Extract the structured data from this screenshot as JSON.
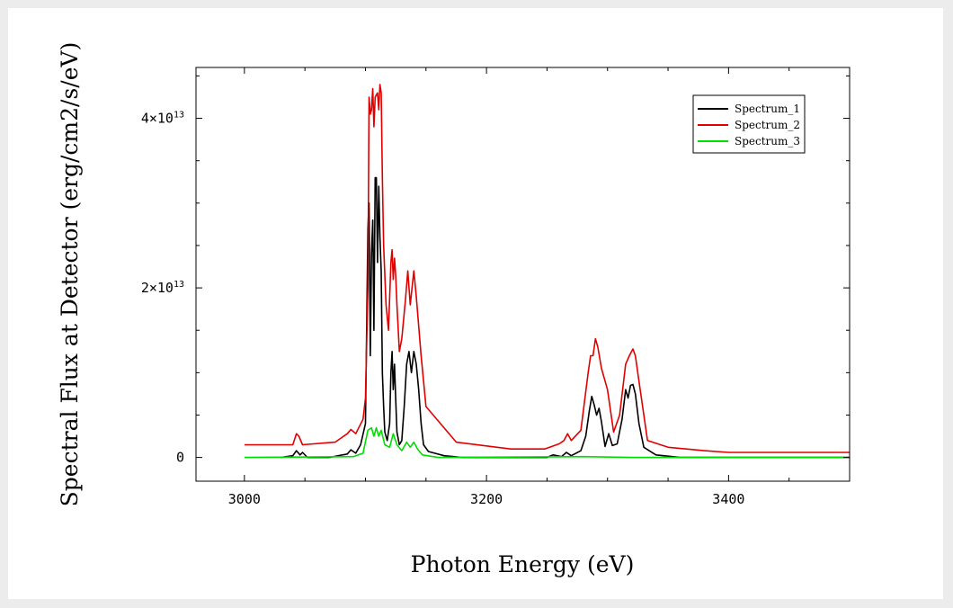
{
  "chart_data": {
    "type": "line",
    "xlabel": "Photon Energy (eV)",
    "ylabel": "Spectral Flux at Detector (erg/cm2/s/eV)",
    "xlim": [
      2960,
      3500
    ],
    "ylim": [
      -2800000000000.0,
      46000000000000.0
    ],
    "x_ticks": [
      {
        "value": 3000,
        "label": "3000"
      },
      {
        "value": 3200,
        "label": "3200"
      },
      {
        "value": 3400,
        "label": "3400"
      }
    ],
    "y_ticks": [
      {
        "value": 0,
        "mantissa": "0",
        "exponent": ""
      },
      {
        "value": 20000000000000.0,
        "mantissa": "2×10",
        "exponent": "13"
      },
      {
        "value": 40000000000000.0,
        "mantissa": "4×10",
        "exponent": "13"
      }
    ],
    "legend": "top-right",
    "series": [
      {
        "name": "Spectrum_1",
        "color": "#000000",
        "points": [
          [
            3030,
            0
          ],
          [
            3040,
            200000000000.0
          ],
          [
            3043,
            800000000000.0
          ],
          [
            3046,
            300000000000.0
          ],
          [
            3048,
            600000000000.0
          ],
          [
            3052,
            0
          ],
          [
            3070,
            0
          ],
          [
            3085,
            400000000000.0
          ],
          [
            3088,
            900000000000.0
          ],
          [
            3092,
            500000000000.0
          ],
          [
            3096,
            1500000000000.0
          ],
          [
            3100,
            4000000000000.0
          ],
          [
            3102,
            27000000000000.0
          ],
          [
            3103,
            30000000000000.0
          ],
          [
            3104,
            12000000000000.0
          ],
          [
            3105,
            24000000000000.0
          ],
          [
            3106,
            28000000000000.0
          ],
          [
            3107,
            15000000000000.0
          ],
          [
            3108,
            33000000000000.0
          ],
          [
            3109,
            33000000000000.0
          ],
          [
            3110,
            23000000000000.0
          ],
          [
            3111,
            32000000000000.0
          ],
          [
            3112,
            26000000000000.0
          ],
          [
            3113,
            22000000000000.0
          ],
          [
            3114,
            10000000000000.0
          ],
          [
            3115,
            6000000000000.0
          ],
          [
            3116,
            3000000000000.0
          ],
          [
            3118,
            2000000000000.0
          ],
          [
            3120,
            4000000000000.0
          ],
          [
            3121,
            10000000000000.0
          ],
          [
            3122,
            12500000000000.0
          ],
          [
            3123,
            8000000000000.0
          ],
          [
            3124,
            11000000000000.0
          ],
          [
            3125,
            7000000000000.0
          ],
          [
            3126,
            3000000000000.0
          ],
          [
            3128,
            1500000000000.0
          ],
          [
            3130,
            2000000000000.0
          ],
          [
            3132,
            6000000000000.0
          ],
          [
            3134,
            11000000000000.0
          ],
          [
            3136,
            12500000000000.0
          ],
          [
            3138,
            10000000000000.0
          ],
          [
            3140,
            12500000000000.0
          ],
          [
            3142,
            11000000000000.0
          ],
          [
            3144,
            8000000000000.0
          ],
          [
            3146,
            4000000000000.0
          ],
          [
            3148,
            1500000000000.0
          ],
          [
            3152,
            700000000000.0
          ],
          [
            3165,
            200000000000.0
          ],
          [
            3180,
            0
          ],
          [
            3250,
            0
          ],
          [
            3255,
            300000000000.0
          ],
          [
            3262,
            100000000000.0
          ],
          [
            3266,
            600000000000.0
          ],
          [
            3270,
            200000000000.0
          ],
          [
            3278,
            800000000000.0
          ],
          [
            3282,
            2500000000000.0
          ],
          [
            3285,
            5500000000000.0
          ],
          [
            3287,
            7200000000000.0
          ],
          [
            3289,
            6200000000000.0
          ],
          [
            3291,
            5000000000000.0
          ],
          [
            3293,
            5800000000000.0
          ],
          [
            3295,
            4200000000000.0
          ],
          [
            3298,
            1300000000000.0
          ],
          [
            3301,
            2800000000000.0
          ],
          [
            3304,
            1400000000000.0
          ],
          [
            3308,
            1600000000000.0
          ],
          [
            3312,
            4500000000000.0
          ],
          [
            3315,
            8000000000000.0
          ],
          [
            3317,
            7000000000000.0
          ],
          [
            3319,
            8500000000000.0
          ],
          [
            3321,
            8600000000000.0
          ],
          [
            3323,
            7500000000000.0
          ],
          [
            3326,
            4000000000000.0
          ],
          [
            3330,
            1200000000000.0
          ],
          [
            3340,
            300000000000.0
          ],
          [
            3360,
            0
          ],
          [
            3500,
            0
          ]
        ]
      },
      {
        "name": "Spectrum_2",
        "color": "#e00000",
        "points": [
          [
            3000,
            1500000000000.0
          ],
          [
            3040,
            1500000000000.0
          ],
          [
            3043,
            2800000000000.0
          ],
          [
            3045,
            2500000000000.0
          ],
          [
            3048,
            1500000000000.0
          ],
          [
            3075,
            1800000000000.0
          ],
          [
            3085,
            2800000000000.0
          ],
          [
            3088,
            3300000000000.0
          ],
          [
            3092,
            2800000000000.0
          ],
          [
            3098,
            4500000000000.0
          ],
          [
            3100,
            7000000000000.0
          ],
          [
            3102,
            20000000000000.0
          ],
          [
            3103,
            42500000000000.0
          ],
          [
            3104,
            40500000000000.0
          ],
          [
            3105,
            41000000000000.0
          ],
          [
            3106,
            43500000000000.0
          ],
          [
            3107,
            39000000000000.0
          ],
          [
            3108,
            42500000000000.0
          ],
          [
            3110,
            43000000000000.0
          ],
          [
            3111,
            41000000000000.0
          ],
          [
            3112,
            44000000000000.0
          ],
          [
            3113,
            43000000000000.0
          ],
          [
            3114,
            33000000000000.0
          ],
          [
            3115,
            25000000000000.0
          ],
          [
            3117,
            18000000000000.0
          ],
          [
            3119,
            15000000000000.0
          ],
          [
            3121,
            23000000000000.0
          ],
          [
            3122,
            24500000000000.0
          ],
          [
            3123,
            21000000000000.0
          ],
          [
            3124,
            23500000000000.0
          ],
          [
            3125,
            21500000000000.0
          ],
          [
            3126,
            18000000000000.0
          ],
          [
            3128,
            12500000000000.0
          ],
          [
            3130,
            14000000000000.0
          ],
          [
            3133,
            18500000000000.0
          ],
          [
            3135,
            22000000000000.0
          ],
          [
            3137,
            18000000000000.0
          ],
          [
            3140,
            22000000000000.0
          ],
          [
            3142,
            19000000000000.0
          ],
          [
            3146,
            12000000000000.0
          ],
          [
            3150,
            6000000000000.0
          ],
          [
            3175,
            1800000000000.0
          ],
          [
            3220,
            1000000000000.0
          ],
          [
            3248,
            1000000000000.0
          ],
          [
            3260,
            1600000000000.0
          ],
          [
            3264,
            2000000000000.0
          ],
          [
            3267,
            2800000000000.0
          ],
          [
            3270,
            2000000000000.0
          ],
          [
            3278,
            3200000000000.0
          ],
          [
            3284,
            10000000000000.0
          ],
          [
            3286,
            12000000000000.0
          ],
          [
            3288,
            12000000000000.0
          ],
          [
            3290,
            14000000000000.0
          ],
          [
            3292,
            13000000000000.0
          ],
          [
            3295,
            10500000000000.0
          ],
          [
            3300,
            8000000000000.0
          ],
          [
            3305,
            3000000000000.0
          ],
          [
            3310,
            5000000000000.0
          ],
          [
            3315,
            11000000000000.0
          ],
          [
            3318,
            12000000000000.0
          ],
          [
            3321,
            12800000000000.0
          ],
          [
            3323,
            12000000000000.0
          ],
          [
            3326,
            9000000000000.0
          ],
          [
            3333,
            2000000000000.0
          ],
          [
            3350,
            1200000000000.0
          ],
          [
            3380,
            800000000000.0
          ],
          [
            3400,
            600000000000.0
          ],
          [
            3500,
            600000000000.0
          ]
        ]
      },
      {
        "name": "Spectrum_3",
        "color": "#00dd00",
        "points": [
          [
            3000,
            0
          ],
          [
            3090,
            100000000000.0
          ],
          [
            3098,
            500000000000.0
          ],
          [
            3102,
            3200000000000.0
          ],
          [
            3105,
            3500000000000.0
          ],
          [
            3107,
            2500000000000.0
          ],
          [
            3109,
            3500000000000.0
          ],
          [
            3111,
            2500000000000.0
          ],
          [
            3113,
            3200000000000.0
          ],
          [
            3116,
            1500000000000.0
          ],
          [
            3120,
            1200000000000.0
          ],
          [
            3123,
            2800000000000.0
          ],
          [
            3126,
            1500000000000.0
          ],
          [
            3130,
            800000000000.0
          ],
          [
            3134,
            1800000000000.0
          ],
          [
            3137,
            1200000000000.0
          ],
          [
            3140,
            1800000000000.0
          ],
          [
            3143,
            1000000000000.0
          ],
          [
            3147,
            300000000000.0
          ],
          [
            3160,
            0
          ],
          [
            3280,
            100000000000.0
          ],
          [
            3320,
            0
          ],
          [
            3500,
            0
          ]
        ]
      }
    ]
  }
}
